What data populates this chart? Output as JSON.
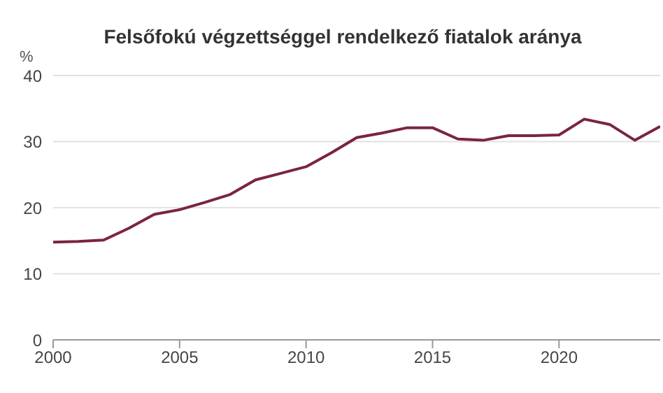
{
  "chart_data": {
    "type": "line",
    "title": "Felsőfokú végzettséggel rendelkező fiatalok aránya",
    "ylabel": "%",
    "x": [
      2000,
      2001,
      2002,
      2003,
      2004,
      2005,
      2006,
      2007,
      2008,
      2009,
      2010,
      2011,
      2012,
      2013,
      2014,
      2015,
      2016,
      2017,
      2018,
      2019,
      2020,
      2021,
      2022,
      2023,
      2024
    ],
    "series": [
      {
        "color": "#7b2346",
        "values": [
          14.8,
          14.9,
          15.1,
          16.9,
          19.0,
          19.7,
          20.8,
          22.0,
          24.2,
          25.2,
          26.2,
          28.3,
          30.6,
          31.3,
          32.1,
          32.1,
          30.4,
          30.2,
          30.9,
          30.9,
          31.0,
          33.4,
          32.6,
          30.2,
          32.3
        ]
      }
    ],
    "xlim": [
      2000,
      2024
    ],
    "xticks": [
      2000,
      2005,
      2010,
      2015,
      2020
    ],
    "ylim": [
      0,
      40
    ],
    "yticks": [
      0,
      10,
      20,
      30,
      40
    ],
    "grid": "y",
    "marker": "none",
    "line_style": "solid"
  }
}
